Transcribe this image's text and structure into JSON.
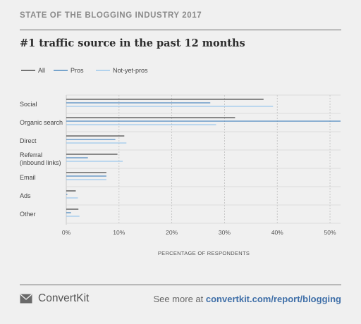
{
  "header": {
    "kicker": "STATE OF THE BLOGGING INDUSTRY 2017",
    "title": "#1 traffic source in the past 12 months"
  },
  "footer": {
    "brand": "ConvertKit",
    "brand_icon": "mail-icon",
    "cta_prefix": "See more at ",
    "cta_url": "convertkit.com/report/blogging"
  },
  "colors": {
    "all": "#4a4a4a",
    "pros": "#4f8ac0",
    "not_yet_pros": "#9cc8ec",
    "grid": "#bdbdbd",
    "text": "#444444"
  },
  "chart_data": {
    "type": "bar",
    "orientation": "horizontal",
    "categories": [
      "Social",
      "Organic search",
      "Direct",
      "Referral\n(inbound links)",
      "Email",
      "Ads",
      "Other"
    ],
    "series": [
      {
        "name": "All",
        "values": [
          37.4,
          32.0,
          11.0,
          9.7,
          7.6,
          1.8,
          2.3
        ]
      },
      {
        "name": "Pros",
        "values": [
          27.3,
          52.0,
          9.3,
          4.1,
          7.6,
          0.2,
          0.9
        ]
      },
      {
        "name": "Not-yet-pros",
        "values": [
          39.2,
          28.4,
          11.4,
          10.7,
          7.6,
          2.2,
          2.5
        ]
      }
    ],
    "xlabel": "PERCENTAGE OF RESPONDENTS",
    "xlim": [
      0,
      52
    ],
    "xticks": [
      0,
      10,
      20,
      30,
      40,
      50
    ],
    "xtick_labels": [
      "0%",
      "10%",
      "20%",
      "30%",
      "40%",
      "50%"
    ],
    "legend_position": "top-left",
    "grid": "vertical"
  }
}
